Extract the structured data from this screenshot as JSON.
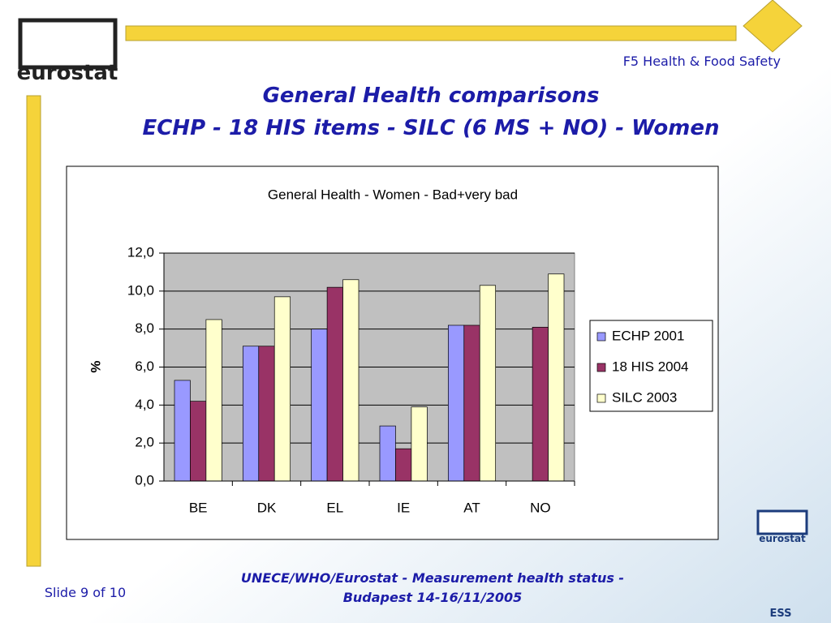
{
  "header": {
    "logo_text": "eurostat",
    "section": "F5 Health & Food Safety",
    "title_line1": "General Health comparisons",
    "title_line2": "ECHP - 18 HIS items - SILC (6 MS + NO) - Women"
  },
  "footer": {
    "slide": "Slide 9 of 10",
    "line1": "UNECE/WHO/Eurostat - Measurement health status -",
    "line2": "Budapest 14-16/11/2005",
    "logo_text": "eurostat",
    "ess": "ESS"
  },
  "chart_data": {
    "type": "bar",
    "title": "General Health - Women - Bad+very bad",
    "ylabel": "%",
    "categories": [
      "BE",
      "DK",
      "EL",
      "IE",
      "AT",
      "NO"
    ],
    "series": [
      {
        "name": "ECHP 2001",
        "color": "#9999ff",
        "values": [
          5.3,
          7.1,
          8.0,
          2.9,
          8.2,
          null
        ]
      },
      {
        "name": "18 HIS 2004",
        "color": "#993366",
        "values": [
          4.2,
          7.1,
          10.2,
          1.7,
          8.2,
          8.1
        ]
      },
      {
        "name": "SILC 2003",
        "color": "#ffffcc",
        "values": [
          8.5,
          9.7,
          10.6,
          3.9,
          10.3,
          10.9
        ]
      }
    ],
    "ylim": [
      0,
      12
    ],
    "yticks": [
      {
        "value": 0,
        "label": "0,0"
      },
      {
        "value": 2,
        "label": "2,0"
      },
      {
        "value": 4,
        "label": "4,0"
      },
      {
        "value": 6,
        "label": "6,0"
      },
      {
        "value": 8,
        "label": "8,0"
      },
      {
        "value": 10,
        "label": "10,0"
      },
      {
        "value": 12,
        "label": "12,0"
      }
    ],
    "grid": true,
    "plot_background": "#c0c0c0",
    "legend": "right"
  }
}
